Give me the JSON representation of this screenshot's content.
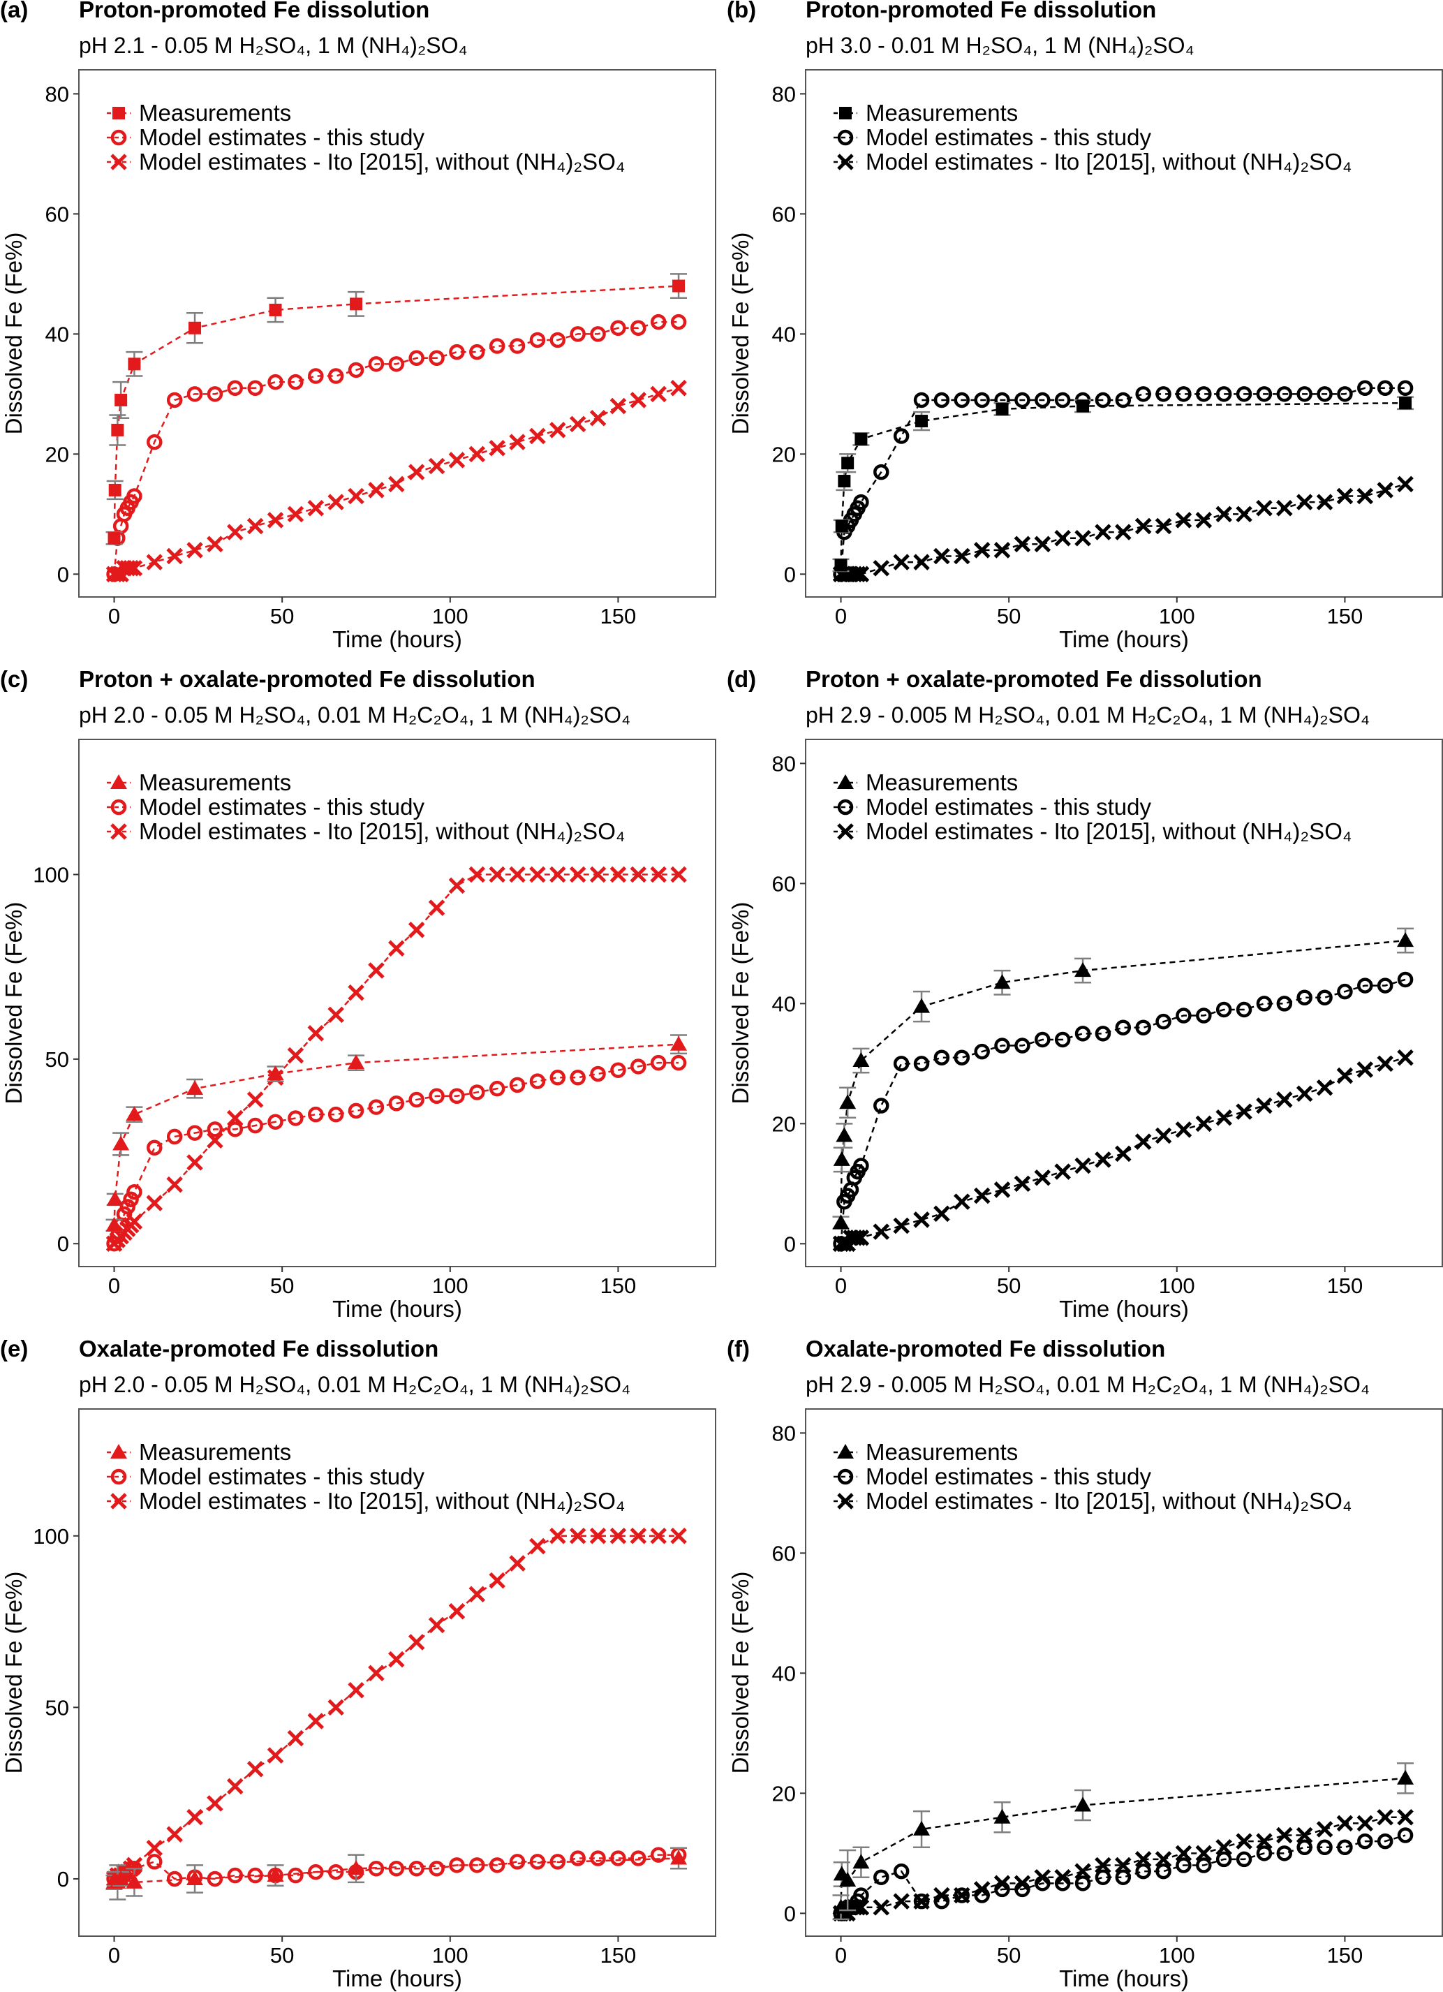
{
  "chart_data": {
    "type": "scatter",
    "model_t": [
      0,
      1,
      2,
      3,
      4,
      5,
      6,
      12,
      18,
      24,
      30,
      36,
      42,
      48,
      54,
      60,
      66,
      72,
      78,
      84,
      90,
      96,
      102,
      108,
      114,
      120,
      126,
      132,
      138,
      144,
      150,
      156,
      162,
      168
    ],
    "xlabel": "Time (hours)",
    "ylabel": "Dissolved Fe (Fe%)",
    "xticks": [
      0,
      50,
      100,
      150
    ],
    "xlim": [
      -10.5,
      179
    ],
    "legend_placement": "top-left",
    "legend": [
      "Measurements",
      "Model estimates - this study",
      "Model estimates - Ito [2015], without (NH₄)₂SO₄"
    ],
    "panels": [
      {
        "label": "(a)",
        "title": "Proton-promoted Fe dissolution",
        "subtitle": "pH 2.1 - 0.05 M H₂SO₄, 1 M (NH₄)₂SO₄",
        "color": "#e31a1c",
        "marker": "square",
        "ylim": [
          -3.8,
          84
        ],
        "yticks": [
          0,
          20,
          40,
          60,
          80
        ],
        "meas": {
          "t": [
            0,
            0.25,
            1,
            2,
            6,
            24,
            48,
            72,
            168
          ],
          "y": [
            6,
            14,
            24,
            29,
            35,
            41,
            44,
            45,
            48
          ],
          "err": [
            1,
            1.5,
            2.5,
            3,
            2,
            2.5,
            2,
            2,
            2
          ]
        },
        "this_study": [
          0,
          6,
          8,
          10,
          11,
          12,
          13,
          22,
          29,
          30,
          30,
          31,
          31,
          32,
          32,
          33,
          33,
          34,
          35,
          35,
          36,
          36,
          37,
          37,
          38,
          38,
          39,
          39,
          40,
          40,
          41,
          41,
          42,
          42
        ],
        "ito2015": [
          0,
          0,
          0,
          1,
          1,
          1,
          1,
          2,
          3,
          4,
          5,
          7,
          8,
          9,
          10,
          11,
          12,
          13,
          14,
          15,
          17,
          18,
          19,
          20,
          21,
          22,
          23,
          24,
          25,
          26,
          28,
          29,
          30,
          31
        ]
      },
      {
        "label": "(b)",
        "title": "Proton-promoted Fe dissolution",
        "subtitle": "pH 3.0 - 0.01 M H₂SO₄, 1 M (NH₄)₂SO₄",
        "color": "#000000",
        "marker": "square",
        "ylim": [
          -3.8,
          84
        ],
        "yticks": [
          0,
          20,
          40,
          60,
          80
        ],
        "meas": {
          "t": [
            0,
            0.25,
            1,
            2,
            6,
            24,
            48,
            72,
            168
          ],
          "y": [
            1.5,
            8,
            15.5,
            18.5,
            22.5,
            25.5,
            27.5,
            28,
            28.5
          ],
          "err": [
            1,
            1,
            1.5,
            1.5,
            1,
            1.5,
            1,
            1,
            1
          ]
        },
        "this_study": [
          0,
          7,
          8,
          9,
          10,
          11,
          12,
          17,
          23,
          29,
          29,
          29,
          29,
          29,
          29,
          29,
          29,
          29,
          29,
          29,
          30,
          30,
          30,
          30,
          30,
          30,
          30,
          30,
          30,
          30,
          30,
          31,
          31,
          31
        ],
        "ito2015": [
          0,
          0,
          0,
          0,
          0,
          0,
          0,
          1,
          2,
          2,
          3,
          3,
          4,
          4,
          5,
          5,
          6,
          6,
          7,
          7,
          8,
          8,
          9,
          9,
          10,
          10,
          11,
          11,
          12,
          12,
          13,
          13,
          14,
          15
        ]
      },
      {
        "label": "(c)",
        "title": "Proton + oxalate-promoted Fe dissolution",
        "subtitle": "pH 2.0 - 0.05 M H₂SO₄, 0.01 M H₂C₂O₄, 1 M (NH₄)₂SO₄",
        "color": "#e31a1c",
        "marker": "triangle",
        "ylim": [
          -6.2,
          136.6
        ],
        "yticks": [
          0,
          50,
          100
        ],
        "meas": {
          "t": [
            0,
            0.25,
            2,
            6,
            24,
            48,
            72,
            168
          ],
          "y": [
            5,
            12,
            27,
            35,
            42,
            46,
            49,
            54
          ],
          "err": [
            1.5,
            1.5,
            3,
            2,
            2.5,
            2,
            2,
            2.5
          ]
        },
        "this_study": [
          0,
          2,
          5,
          8,
          10,
          12,
          14,
          26,
          29,
          30,
          31,
          31,
          32,
          33,
          34,
          35,
          35,
          36,
          37,
          38,
          39,
          40,
          40,
          41,
          42,
          43,
          44,
          45,
          45,
          46,
          47,
          48,
          49,
          49
        ],
        "ito2015": [
          0,
          1,
          2,
          3,
          4,
          5,
          6,
          11,
          16,
          22,
          28,
          34,
          39,
          45,
          51,
          57,
          62,
          68,
          74,
          80,
          85,
          91,
          97,
          100,
          100,
          100,
          100,
          100,
          100,
          100,
          100,
          100,
          100,
          100
        ]
      },
      {
        "label": "(d)",
        "title": "Proton + oxalate-promoted Fe dissolution",
        "subtitle": "pH 2.9 - 0.005 M H₂SO₄, 0.01 M H₂C₂O₄, 1 M (NH₄)₂SO₄",
        "color": "#000000",
        "marker": "triangle",
        "ylim": [
          -3.8,
          84
        ],
        "yticks": [
          0,
          20,
          40,
          60,
          80
        ],
        "meas": {
          "t": [
            0,
            0.25,
            1,
            2,
            6,
            24,
            48,
            72,
            168
          ],
          "y": [
            3.5,
            14,
            18,
            23.5,
            30.5,
            39.5,
            43.5,
            45.5,
            50.5
          ],
          "err": [
            1,
            2,
            2,
            2.5,
            2,
            2.5,
            2,
            2,
            2
          ]
        },
        "this_study": [
          0,
          7,
          8,
          9,
          11,
          12,
          13,
          23,
          30,
          30,
          31,
          31,
          32,
          33,
          33,
          34,
          34,
          35,
          35,
          36,
          36,
          37,
          38,
          38,
          39,
          39,
          40,
          40,
          41,
          41,
          42,
          43,
          43,
          44
        ],
        "ito2015": [
          0,
          0,
          0,
          1,
          1,
          1,
          1,
          2,
          3,
          4,
          5,
          7,
          8,
          9,
          10,
          11,
          12,
          13,
          14,
          15,
          17,
          18,
          19,
          20,
          21,
          22,
          23,
          24,
          25,
          26,
          28,
          29,
          30,
          31
        ]
      },
      {
        "label": "(e)",
        "title": "Oxalate-promoted Fe dissolution",
        "subtitle": "pH 2.0 - 0.05 M H₂SO₄, 0.01 M H₂C₂O₄, 1 M (NH₄)₂SO₄",
        "color": "#e31a1c",
        "marker": "triangle",
        "ylim": [
          -16.7,
          137
        ],
        "yticks": [
          0,
          50,
          100
        ],
        "meas": {
          "t": [
            0,
            0.25,
            1,
            2,
            6,
            24,
            48,
            72,
            168
          ],
          "y": [
            -1,
            0,
            -1,
            0,
            -1,
            0,
            1,
            3,
            6
          ],
          "err": [
            2,
            2,
            5,
            2,
            4,
            4,
            3,
            4,
            3
          ]
        },
        "this_study": [
          0,
          0,
          1,
          1,
          2,
          3,
          3,
          5,
          0,
          0.5,
          0,
          1,
          1,
          1,
          1,
          2,
          2,
          2,
          3,
          3,
          3,
          3,
          4,
          4,
          4,
          5,
          5,
          5,
          6,
          6,
          6,
          6,
          7,
          7
        ],
        "ito2015": [
          0,
          1,
          1,
          2,
          2,
          3,
          4,
          9,
          13,
          18,
          22,
          27,
          32,
          36,
          41,
          46,
          50,
          55,
          60,
          64,
          69,
          74,
          78,
          83,
          87,
          92,
          97,
          100,
          100,
          100,
          100,
          100,
          100,
          100
        ]
      },
      {
        "label": "(f)",
        "title": "Oxalate-promoted Fe dissolution",
        "subtitle": "pH 2.9 - 0.005 M H₂SO₄, 0.01 M H₂C₂O₄, 1 M (NH₄)₂SO₄",
        "color": "#000000",
        "marker": "triangle",
        "ylim": [
          -3.8,
          84
        ],
        "yticks": [
          0,
          20,
          40,
          60,
          80
        ],
        "meas": {
          "t": [
            0,
            0.25,
            2,
            6,
            24,
            48,
            72,
            168
          ],
          "y": [
            1,
            6.5,
            5.5,
            8.5,
            14,
            16,
            18,
            22.5
          ],
          "err": [
            2,
            2,
            5,
            2.5,
            3,
            2.5,
            2.5,
            2.5
          ]
        },
        "this_study": [
          0,
          0,
          1,
          1,
          1,
          2,
          3,
          6,
          7,
          2,
          2,
          3,
          3,
          4,
          4,
          5,
          5,
          5,
          6,
          6,
          7,
          7,
          8,
          8,
          9,
          9,
          10,
          10,
          11,
          11,
          11,
          12,
          12,
          13
        ],
        "ito2015": [
          0,
          0,
          0,
          1,
          1,
          1,
          1,
          1,
          2,
          2,
          3,
          3,
          4,
          5,
          5,
          6,
          6,
          7,
          8,
          8,
          9,
          9,
          10,
          10,
          11,
          12,
          12,
          13,
          13,
          14,
          15,
          15,
          16,
          16
        ]
      }
    ]
  },
  "colors": {
    "error_bar": "#7f7f7f",
    "frame": "#555555"
  }
}
